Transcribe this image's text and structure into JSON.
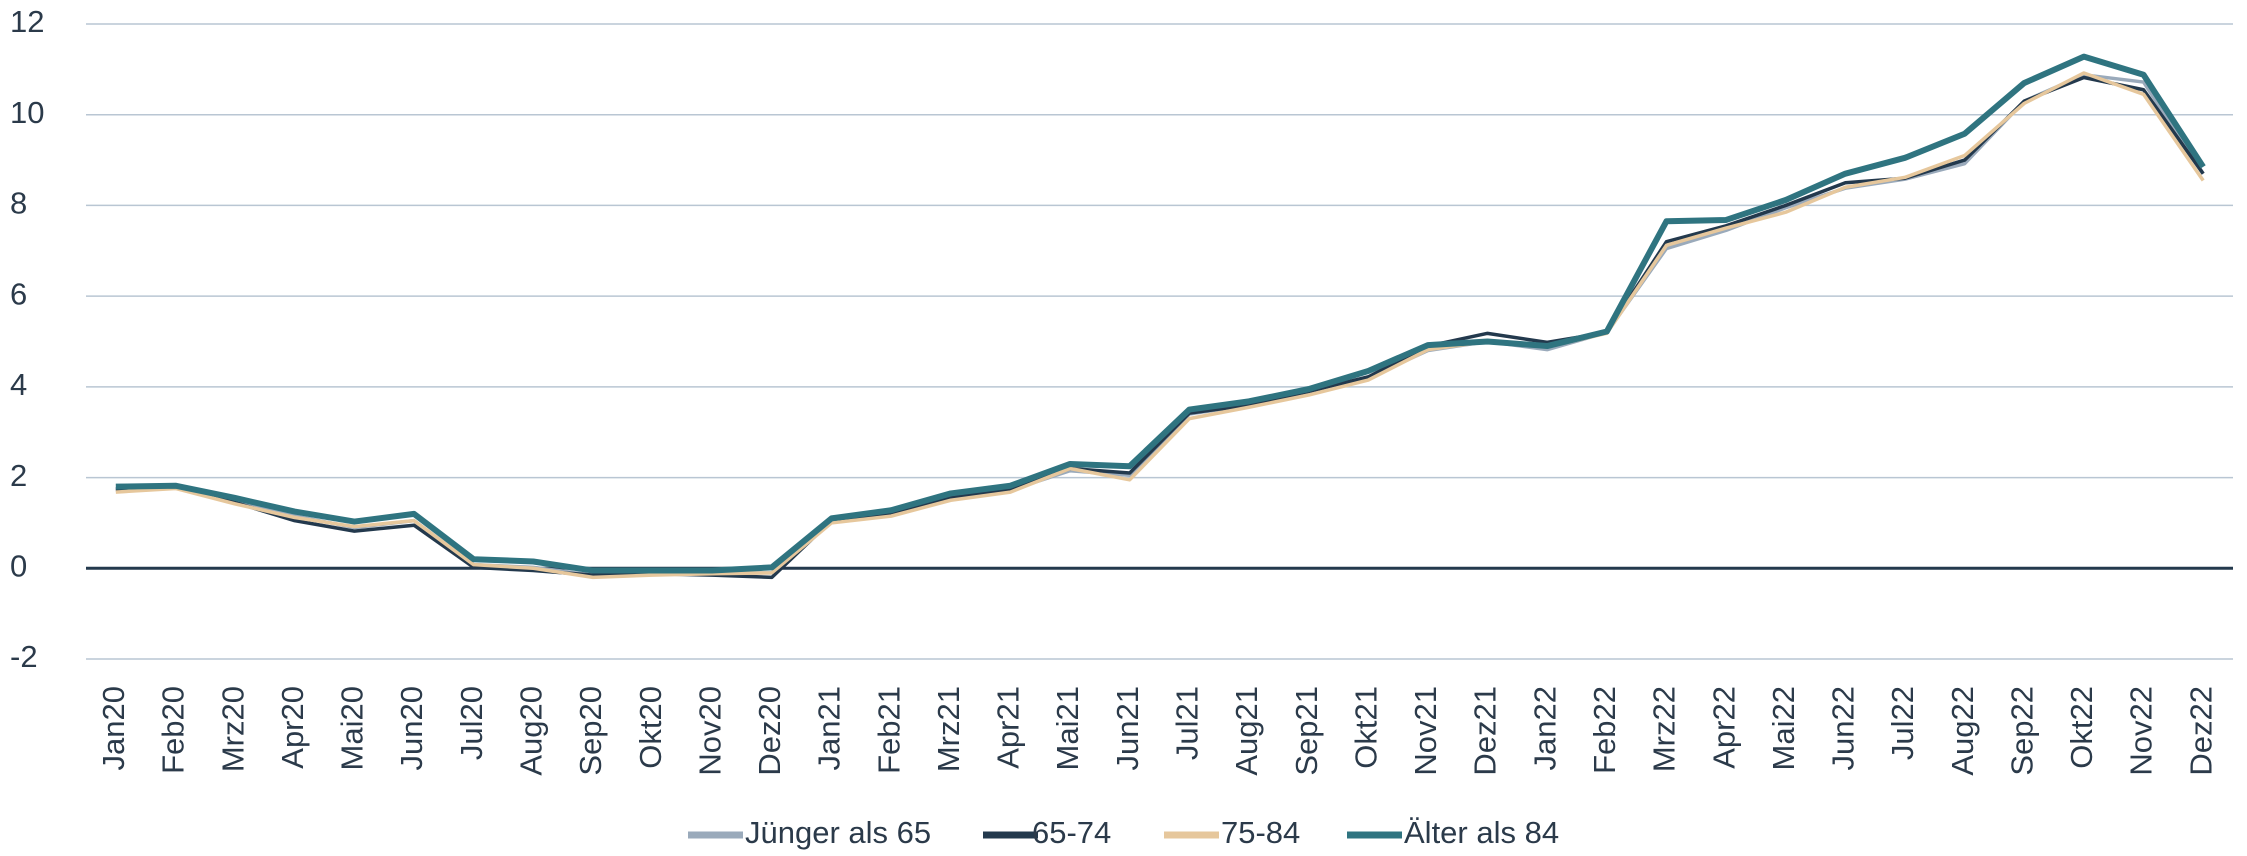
{
  "chart_data": {
    "type": "line",
    "categories": [
      "Jan20",
      "Feb20",
      "Mrz20",
      "Apr20",
      "Mai20",
      "Jun20",
      "Jul20",
      "Aug20",
      "Sep20",
      "Okt20",
      "Nov20",
      "Dez20",
      "Jan21",
      "Feb21",
      "Mrz21",
      "Apr21",
      "Mai21",
      "Jun21",
      "Jul21",
      "Aug21",
      "Sep21",
      "Okt21",
      "Nov21",
      "Dez21",
      "Jan22",
      "Feb22",
      "Mrz22",
      "Apr22",
      "Mai22",
      "Jun22",
      "Jul22",
      "Aug22",
      "Sep22",
      "Okt22",
      "Nov22",
      "Dez22"
    ],
    "series": [
      {
        "name": "Jünger als 65",
        "color": "#9aaabb",
        "values": [
          1.72,
          1.78,
          1.5,
          1.15,
          0.9,
          1.05,
          0.08,
          0.02,
          -0.15,
          -0.12,
          -0.1,
          -0.1,
          1.05,
          1.2,
          1.55,
          1.72,
          2.15,
          2.05,
          3.4,
          3.6,
          3.85,
          4.2,
          4.8,
          5.0,
          4.82,
          5.2,
          7.05,
          7.45,
          7.95,
          8.38,
          8.58,
          8.92,
          10.3,
          10.88,
          10.72,
          8.7
        ]
      },
      {
        "name": "65-74",
        "color": "#23394d",
        "values": [
          1.75,
          1.78,
          1.45,
          1.05,
          0.82,
          0.95,
          0.02,
          -0.05,
          -0.15,
          -0.12,
          -0.15,
          -0.2,
          1.05,
          1.22,
          1.55,
          1.75,
          2.2,
          2.1,
          3.42,
          3.6,
          3.9,
          4.22,
          4.9,
          5.18,
          4.98,
          5.2,
          7.2,
          7.55,
          8.0,
          8.5,
          8.6,
          9.0,
          10.3,
          10.82,
          10.55,
          8.7
        ]
      },
      {
        "name": "75-84",
        "color": "#e6c79c",
        "values": [
          1.68,
          1.76,
          1.42,
          1.12,
          0.92,
          1.05,
          0.08,
          0.0,
          -0.2,
          -0.15,
          -0.12,
          -0.1,
          1.0,
          1.15,
          1.5,
          1.68,
          2.2,
          1.95,
          3.3,
          3.55,
          3.82,
          4.15,
          4.82,
          5.0,
          4.88,
          5.18,
          7.12,
          7.5,
          7.85,
          8.4,
          8.62,
          9.1,
          10.25,
          10.92,
          10.45,
          8.55
        ]
      },
      {
        "name": "Älter als 84",
        "color": "#2f7480",
        "values": [
          1.8,
          1.82,
          1.55,
          1.25,
          1.03,
          1.2,
          0.2,
          0.15,
          -0.05,
          -0.05,
          -0.05,
          0.02,
          1.1,
          1.28,
          1.65,
          1.82,
          2.3,
          2.25,
          3.5,
          3.68,
          3.95,
          4.35,
          4.92,
          5.0,
          4.9,
          5.22,
          7.65,
          7.68,
          8.12,
          8.7,
          9.05,
          9.58,
          10.7,
          11.28,
          10.88,
          8.85
        ]
      }
    ],
    "ylim": [
      -2,
      12
    ],
    "yticks": [
      -2,
      0,
      2,
      4,
      6,
      8,
      10,
      12
    ],
    "grid": true,
    "legend": "bottom"
  }
}
